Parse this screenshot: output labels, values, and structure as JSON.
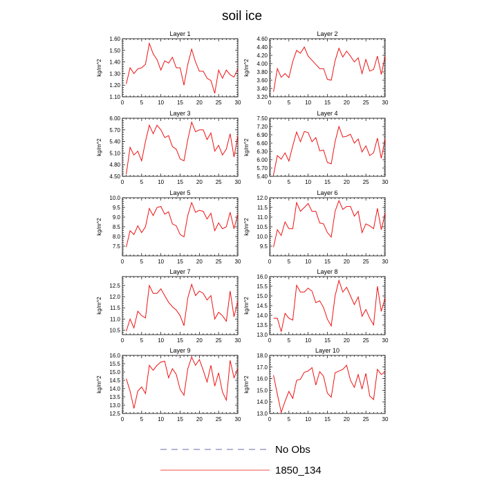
{
  "title": "soil ice",
  "legend": [
    {
      "label": "No Obs",
      "style": "dashed",
      "color": "#3a3a8c"
    },
    {
      "label": "1850_134",
      "style": "solid",
      "color": "#ee1111"
    }
  ],
  "colors": {
    "series": "#ee1111",
    "axis": "#000000"
  },
  "chart_data": [
    {
      "type": "line",
      "title": "Layer 1",
      "ylabel": "kg/m^2",
      "xlim": [
        0,
        30
      ],
      "ylim": [
        1.1,
        1.6
      ],
      "xticks": [
        0,
        5,
        10,
        15,
        20,
        25,
        30
      ],
      "yticks": [
        1.1,
        1.2,
        1.3,
        1.4,
        1.5,
        1.6
      ],
      "ytick_labels": [
        "1.10",
        "1.20",
        "1.30",
        "1.40",
        "1.50",
        "1.60"
      ],
      "x": [
        1,
        2,
        3,
        4,
        5,
        6,
        7,
        8,
        9,
        10,
        11,
        12,
        13,
        14,
        15,
        16,
        17,
        18,
        19,
        20,
        21,
        22,
        23,
        24,
        25,
        26,
        27,
        28,
        29,
        30
      ],
      "values": [
        1.21,
        1.35,
        1.3,
        1.34,
        1.35,
        1.38,
        1.56,
        1.47,
        1.42,
        1.33,
        1.41,
        1.39,
        1.44,
        1.35,
        1.35,
        1.2,
        1.38,
        1.51,
        1.4,
        1.32,
        1.32,
        1.26,
        1.24,
        1.13,
        1.33,
        1.26,
        1.33,
        1.29,
        1.27,
        1.34
      ]
    },
    {
      "type": "line",
      "title": "Layer 2",
      "ylabel": "kg/m^2",
      "xlim": [
        0,
        30
      ],
      "ylim": [
        3.2,
        4.6
      ],
      "xticks": [
        0,
        5,
        10,
        15,
        20,
        25,
        30
      ],
      "yticks": [
        3.2,
        3.4,
        3.6,
        3.8,
        4.0,
        4.2,
        4.4,
        4.6
      ],
      "ytick_labels": [
        "3.20",
        "3.40",
        "3.60",
        "3.80",
        "4.00",
        "4.20",
        "4.40",
        "4.60"
      ],
      "x": [
        1,
        2,
        3,
        4,
        5,
        6,
        7,
        8,
        9,
        10,
        11,
        12,
        13,
        14,
        15,
        16,
        17,
        18,
        19,
        20,
        21,
        22,
        23,
        24,
        25,
        26,
        27,
        28,
        29,
        30
      ],
      "values": [
        3.32,
        3.88,
        3.67,
        3.76,
        3.66,
        4.05,
        4.32,
        4.25,
        4.4,
        4.18,
        4.08,
        3.98,
        3.88,
        3.88,
        3.62,
        3.6,
        4.07,
        4.37,
        4.16,
        4.3,
        4.18,
        4.04,
        4.14,
        3.76,
        4.1,
        3.82,
        3.86,
        4.18,
        3.74,
        4.18
      ]
    },
    {
      "type": "line",
      "title": "Layer 3",
      "ylabel": "kg/m^2",
      "xlim": [
        0,
        30
      ],
      "ylim": [
        4.5,
        6.0
      ],
      "xticks": [
        0,
        5,
        10,
        15,
        20,
        25,
        30
      ],
      "yticks": [
        4.5,
        4.8,
        5.1,
        5.4,
        5.7,
        6.0
      ],
      "ytick_labels": [
        "4.50",
        "4.80",
        "5.10",
        "5.40",
        "5.70",
        "6.00"
      ],
      "x": [
        1,
        2,
        3,
        4,
        5,
        6,
        7,
        8,
        9,
        10,
        11,
        12,
        13,
        14,
        15,
        16,
        17,
        18,
        19,
        20,
        21,
        22,
        23,
        24,
        25,
        26,
        27,
        28,
        29,
        30
      ],
      "values": [
        4.55,
        5.25,
        5.05,
        5.15,
        4.9,
        5.4,
        5.82,
        5.6,
        5.82,
        5.7,
        5.5,
        5.55,
        5.27,
        5.2,
        4.95,
        4.9,
        5.45,
        5.9,
        5.65,
        5.7,
        5.7,
        5.45,
        5.62,
        5.15,
        5.3,
        5.05,
        5.2,
        5.6,
        5.0,
        5.55
      ]
    },
    {
      "type": "line",
      "title": "Layer 4",
      "ylabel": "kg/m^2",
      "xlim": [
        0,
        30
      ],
      "ylim": [
        5.4,
        7.5
      ],
      "xticks": [
        0,
        5,
        10,
        15,
        20,
        25,
        30
      ],
      "yticks": [
        5.4,
        5.7,
        6.0,
        6.3,
        6.6,
        6.9,
        7.2,
        7.5
      ],
      "ytick_labels": [
        "5.40",
        "5.70",
        "6.00",
        "6.30",
        "6.60",
        "6.90",
        "7.20",
        "7.50"
      ],
      "x": [
        1,
        2,
        3,
        4,
        5,
        6,
        7,
        8,
        9,
        10,
        11,
        12,
        13,
        14,
        15,
        16,
        17,
        18,
        19,
        20,
        21,
        22,
        23,
        24,
        25,
        26,
        27,
        28,
        29,
        30
      ],
      "values": [
        5.45,
        6.15,
        6.02,
        6.25,
        5.95,
        6.5,
        7.0,
        6.65,
        7.02,
        6.98,
        6.65,
        6.8,
        6.32,
        6.35,
        5.9,
        5.85,
        6.65,
        7.2,
        6.82,
        6.85,
        6.92,
        6.6,
        6.75,
        6.28,
        6.5,
        6.15,
        6.25,
        6.78,
        6.05,
        6.75
      ]
    },
    {
      "type": "line",
      "title": "Layer 5",
      "ylabel": "kg/m^2",
      "xlim": [
        0,
        30
      ],
      "ylim": [
        7.0,
        10.0
      ],
      "xticks": [
        0,
        5,
        10,
        15,
        20,
        25,
        30
      ],
      "yticks": [
        7.5,
        8.0,
        8.5,
        9.0,
        9.5,
        10.0
      ],
      "ytick_labels": [
        "7.5",
        "8.0",
        "8.5",
        "9.0",
        "9.5",
        "10.0"
      ],
      "x": [
        1,
        2,
        3,
        4,
        5,
        6,
        7,
        8,
        9,
        10,
        11,
        12,
        13,
        14,
        15,
        16,
        17,
        18,
        19,
        20,
        21,
        22,
        23,
        24,
        25,
        26,
        27,
        28,
        29,
        30
      ],
      "values": [
        7.45,
        8.3,
        8.1,
        8.55,
        8.2,
        8.5,
        9.45,
        9.08,
        9.5,
        9.55,
        9.15,
        9.27,
        8.65,
        8.55,
        8.1,
        7.98,
        9.1,
        9.75,
        9.25,
        9.35,
        9.3,
        8.9,
        9.2,
        8.3,
        8.7,
        8.4,
        8.5,
        9.25,
        8.4,
        9.15
      ]
    },
    {
      "type": "line",
      "title": "Layer 6",
      "ylabel": "kg/m^2",
      "xlim": [
        0,
        30
      ],
      "ylim": [
        9.0,
        12.0
      ],
      "xticks": [
        0,
        5,
        10,
        15,
        20,
        25,
        30
      ],
      "yticks": [
        9.5,
        10.0,
        10.5,
        11.0,
        11.5,
        12.0
      ],
      "ytick_labels": [
        "9.5",
        "10.0",
        "10.5",
        "11.0",
        "11.5",
        "12.0"
      ],
      "x": [
        1,
        2,
        3,
        4,
        5,
        6,
        7,
        8,
        9,
        10,
        11,
        12,
        13,
        14,
        15,
        16,
        17,
        18,
        19,
        20,
        21,
        22,
        23,
        24,
        25,
        26,
        27,
        28,
        29,
        30
      ],
      "values": [
        9.45,
        10.35,
        10.05,
        10.75,
        10.4,
        10.4,
        11.75,
        11.3,
        11.5,
        11.7,
        11.3,
        11.3,
        10.7,
        10.65,
        10.2,
        9.97,
        11.3,
        11.85,
        11.4,
        11.55,
        11.55,
        11.05,
        11.3,
        10.2,
        10.65,
        10.55,
        10.4,
        11.45,
        10.35,
        11.2
      ]
    },
    {
      "type": "line",
      "title": "Layer 7",
      "ylabel": "kg/m^2",
      "xlim": [
        0,
        30
      ],
      "ylim": [
        10.3,
        12.9
      ],
      "xticks": [
        0,
        5,
        10,
        15,
        20,
        25,
        30
      ],
      "yticks": [
        10.5,
        11.0,
        11.5,
        12.0,
        12.5
      ],
      "ytick_labels": [
        "10.5",
        "11.0",
        "11.5",
        "12.0",
        "12.5"
      ],
      "x": [
        1,
        2,
        3,
        4,
        5,
        6,
        7,
        8,
        9,
        10,
        11,
        12,
        13,
        14,
        15,
        16,
        17,
        18,
        19,
        20,
        21,
        22,
        23,
        24,
        25,
        26,
        27,
        28,
        29,
        30
      ],
      "values": [
        10.45,
        11.0,
        10.6,
        11.35,
        11.15,
        11.05,
        12.5,
        12.15,
        12.15,
        12.35,
        12.05,
        11.75,
        11.55,
        11.4,
        11.15,
        10.7,
        11.95,
        12.55,
        12.05,
        12.25,
        12.15,
        11.85,
        12.05,
        11.0,
        11.3,
        11.15,
        10.9,
        12.25,
        11.1,
        11.8
      ]
    },
    {
      "type": "line",
      "title": "Layer 8",
      "ylabel": "kg/m^2",
      "xlim": [
        0,
        30
      ],
      "ylim": [
        13.0,
        16.0
      ],
      "xticks": [
        0,
        5,
        10,
        15,
        20,
        25,
        30
      ],
      "yticks": [
        13.0,
        13.5,
        14.0,
        14.5,
        15.0,
        15.5,
        16.0
      ],
      "ytick_labels": [
        "13.0",
        "13.5",
        "14.0",
        "14.5",
        "15.0",
        "15.5",
        "16.0"
      ],
      "x": [
        1,
        2,
        3,
        4,
        5,
        6,
        7,
        8,
        9,
        10,
        11,
        12,
        13,
        14,
        15,
        16,
        17,
        18,
        19,
        20,
        21,
        22,
        23,
        24,
        25,
        26,
        27,
        28,
        29,
        30
      ],
      "values": [
        13.85,
        13.85,
        13.15,
        14.1,
        13.85,
        13.75,
        15.55,
        15.2,
        15.2,
        15.4,
        15.25,
        14.65,
        14.75,
        14.4,
        13.8,
        13.45,
        15.0,
        15.8,
        15.2,
        15.45,
        15.0,
        14.55,
        14.95,
        13.95,
        14.3,
        13.85,
        13.5,
        15.5,
        14.2,
        14.9
      ]
    },
    {
      "type": "line",
      "title": "Layer 9",
      "ylabel": "kg/m^2",
      "xlim": [
        0,
        30
      ],
      "ylim": [
        12.5,
        16.0
      ],
      "xticks": [
        0,
        5,
        10,
        15,
        20,
        25,
        30
      ],
      "yticks": [
        12.5,
        13.0,
        13.5,
        14.0,
        14.5,
        15.0,
        15.5,
        16.0
      ],
      "ytick_labels": [
        "12.5",
        "13.0",
        "13.5",
        "14.0",
        "14.5",
        "15.0",
        "15.5",
        "16.0"
      ],
      "x": [
        1,
        2,
        3,
        4,
        5,
        6,
        7,
        8,
        9,
        10,
        11,
        12,
        13,
        14,
        15,
        16,
        17,
        18,
        19,
        20,
        21,
        22,
        23,
        24,
        25,
        26,
        27,
        28,
        29,
        30
      ],
      "values": [
        14.6,
        13.85,
        12.8,
        13.85,
        14.1,
        13.7,
        15.4,
        15.1,
        15.4,
        15.6,
        15.65,
        14.65,
        15.2,
        14.85,
        13.95,
        13.6,
        15.2,
        15.9,
        15.4,
        15.75,
        15.1,
        14.4,
        15.4,
        14.15,
        14.95,
        13.8,
        13.3,
        15.7,
        14.65,
        15.2
      ]
    },
    {
      "type": "line",
      "title": "Layer 10",
      "ylabel": "kg/m^2",
      "xlim": [
        0,
        30
      ],
      "ylim": [
        13.0,
        18.0
      ],
      "xticks": [
        0,
        5,
        10,
        15,
        20,
        25,
        30
      ],
      "yticks": [
        13.0,
        14.0,
        15.0,
        16.0,
        17.0,
        18.0
      ],
      "ytick_labels": [
        "13.0",
        "14.0",
        "15.0",
        "16.0",
        "17.0",
        "18.0"
      ],
      "x": [
        1,
        2,
        3,
        4,
        5,
        6,
        7,
        8,
        9,
        10,
        11,
        12,
        13,
        14,
        15,
        16,
        17,
        18,
        19,
        20,
        21,
        22,
        23,
        24,
        25,
        26,
        27,
        28,
        29,
        30
      ],
      "values": [
        16.3,
        14.65,
        13.1,
        14.05,
        14.9,
        14.3,
        15.85,
        15.95,
        16.55,
        16.65,
        16.95,
        15.45,
        16.6,
        16.2,
        14.75,
        14.4,
        16.5,
        16.65,
        16.8,
        17.15,
        15.85,
        15.25,
        16.35,
        15.1,
        16.45,
        14.5,
        14.2,
        16.8,
        16.35,
        16.6
      ]
    }
  ]
}
